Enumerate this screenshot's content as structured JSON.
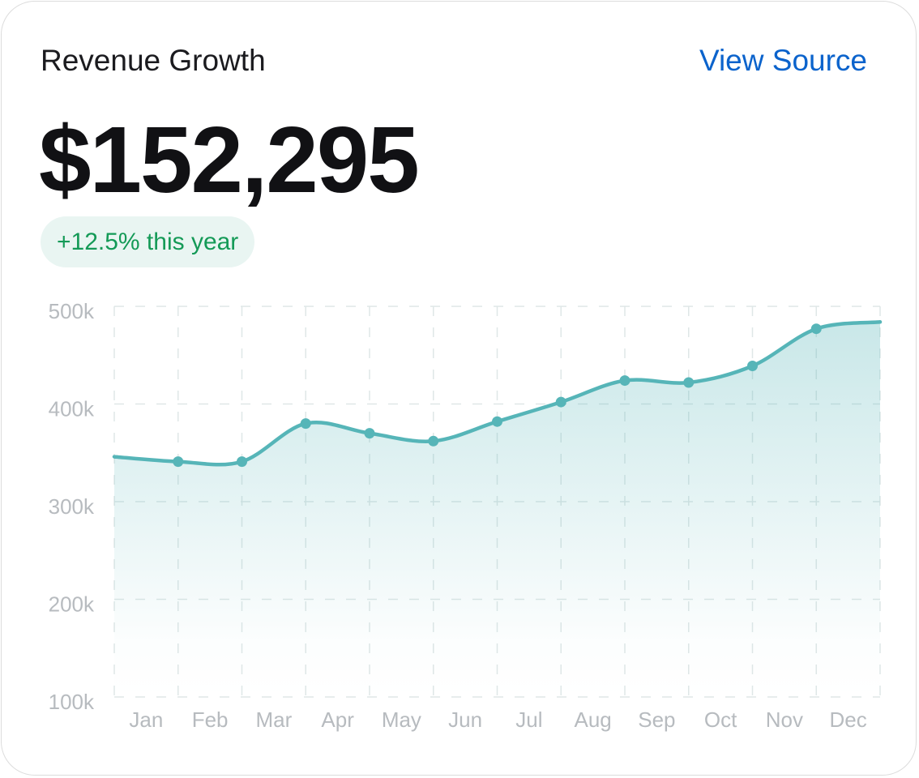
{
  "header": {
    "title": "Revenue Growth",
    "link": "View Source",
    "amount": "$152,295",
    "change": "+12.5% this year"
  },
  "chart_data": {
    "type": "area",
    "categories": [
      null,
      "Jan",
      "Feb",
      "Mar",
      "Apr",
      "May",
      "Jun",
      "Jul",
      "Aug",
      "Sep",
      "Oct",
      "Nov",
      "Dec"
    ],
    "series": [
      {
        "color": "#56b5b8",
        "values": [
          346000,
          341000,
          341000,
          380000,
          370000,
          362000,
          382000,
          402000,
          424000,
          422000,
          439000,
          477000,
          484000
        ]
      }
    ],
    "ylim": [
      100000,
      500000
    ],
    "yticks": [
      {
        "value": 100000,
        "label": "100k"
      },
      {
        "value": 200000,
        "label": "200k"
      },
      {
        "value": 300000,
        "label": "300k"
      },
      {
        "value": 400000,
        "label": "400k"
      },
      {
        "value": 500000,
        "label": "500k"
      }
    ],
    "grid": true
  }
}
